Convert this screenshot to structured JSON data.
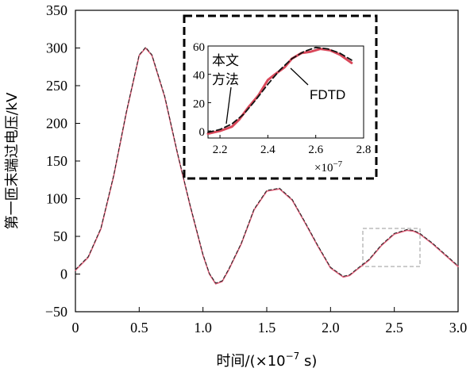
{
  "chart_data": [
    {
      "type": "line",
      "xlabel": "时间/(×10",
      "xlabel_exp": "−7",
      "xlabel_tail": " s)",
      "ylabel": "第一匝末端过电压/kV",
      "xlim": [
        0,
        3.0
      ],
      "ylim": [
        -50,
        350
      ],
      "xticks": [
        "0",
        "0.5",
        "1.0",
        "1.5",
        "2.0",
        "2.5",
        "3.0"
      ],
      "yticks": [
        "−50",
        "0",
        "50",
        "100",
        "150",
        "200",
        "250",
        "300",
        "350"
      ],
      "series": [
        {
          "name": "本文方法",
          "color": "#e0607a",
          "x": [
            0,
            0.1,
            0.2,
            0.3,
            0.4,
            0.5,
            0.55,
            0.6,
            0.7,
            0.8,
            0.9,
            1.0,
            1.05,
            1.1,
            1.15,
            1.2,
            1.3,
            1.4,
            1.5,
            1.6,
            1.7,
            1.8,
            1.9,
            2.0,
            2.1,
            2.15,
            2.2,
            2.3,
            2.4,
            2.5,
            2.6,
            2.65,
            2.7,
            2.8,
            2.9,
            3.0
          ],
          "y": [
            5,
            22,
            60,
            130,
            215,
            290,
            300,
            290,
            235,
            160,
            90,
            25,
            0,
            -13,
            -10,
            5,
            40,
            85,
            110,
            113,
            98,
            68,
            37,
            8,
            -4,
            -2,
            5,
            18,
            38,
            53,
            58,
            57,
            53,
            40,
            25,
            10
          ]
        },
        {
          "name": "FDTD",
          "color": "#222222",
          "dashed": true,
          "x": [
            0,
            0.1,
            0.2,
            0.3,
            0.4,
            0.5,
            0.55,
            0.6,
            0.7,
            0.8,
            0.9,
            1.0,
            1.05,
            1.1,
            1.15,
            1.2,
            1.3,
            1.4,
            1.5,
            1.6,
            1.7,
            1.8,
            1.9,
            2.0,
            2.1,
            2.15,
            2.2,
            2.3,
            2.4,
            2.5,
            2.6,
            2.65,
            2.7,
            2.8,
            2.9,
            3.0
          ],
          "y": [
            6,
            23,
            61,
            131,
            216,
            291,
            301,
            291,
            236,
            161,
            91,
            26,
            1,
            -12,
            -9,
            6,
            41,
            86,
            111,
            114,
            99,
            69,
            38,
            9,
            -3,
            -1,
            6,
            19,
            39,
            54,
            59,
            58,
            54,
            41,
            26,
            11
          ]
        }
      ]
    },
    {
      "type": "line",
      "role": "inset",
      "xlim": [
        2.15,
        2.8
      ],
      "ylim": [
        -5,
        60
      ],
      "xticks": [
        "2.2",
        "2.4",
        "2.6",
        "2.8"
      ],
      "yticks": [
        "0",
        "20",
        "40",
        "60"
      ],
      "x_multiplier": "×10",
      "x_multiplier_exp": "−7",
      "annotations": [
        {
          "text_line1": "本文",
          "text_line2": "方法",
          "target": [
            2.25,
            5
          ]
        },
        {
          "text": "FDTD",
          "target": [
            2.45,
            45
          ]
        }
      ],
      "series": [
        {
          "name": "本文方法",
          "color": "#d9485a",
          "x": [
            2.15,
            2.2,
            2.25,
            2.28,
            2.32,
            2.36,
            2.4,
            2.43,
            2.47,
            2.5,
            2.54,
            2.58,
            2.62,
            2.66,
            2.7,
            2.75
          ],
          "y": [
            -2,
            0,
            3,
            8,
            17,
            25,
            36,
            40,
            45,
            51,
            55,
            56,
            58,
            57,
            54,
            48
          ]
        },
        {
          "name": "FDTD",
          "color": "#111111",
          "dashed": true,
          "x": [
            2.15,
            2.2,
            2.25,
            2.3,
            2.35,
            2.4,
            2.45,
            2.5,
            2.55,
            2.6,
            2.65,
            2.7,
            2.75
          ],
          "y": [
            -1,
            1,
            5,
            12,
            22,
            33,
            43,
            51,
            56,
            59,
            58,
            55,
            50
          ]
        }
      ]
    }
  ]
}
